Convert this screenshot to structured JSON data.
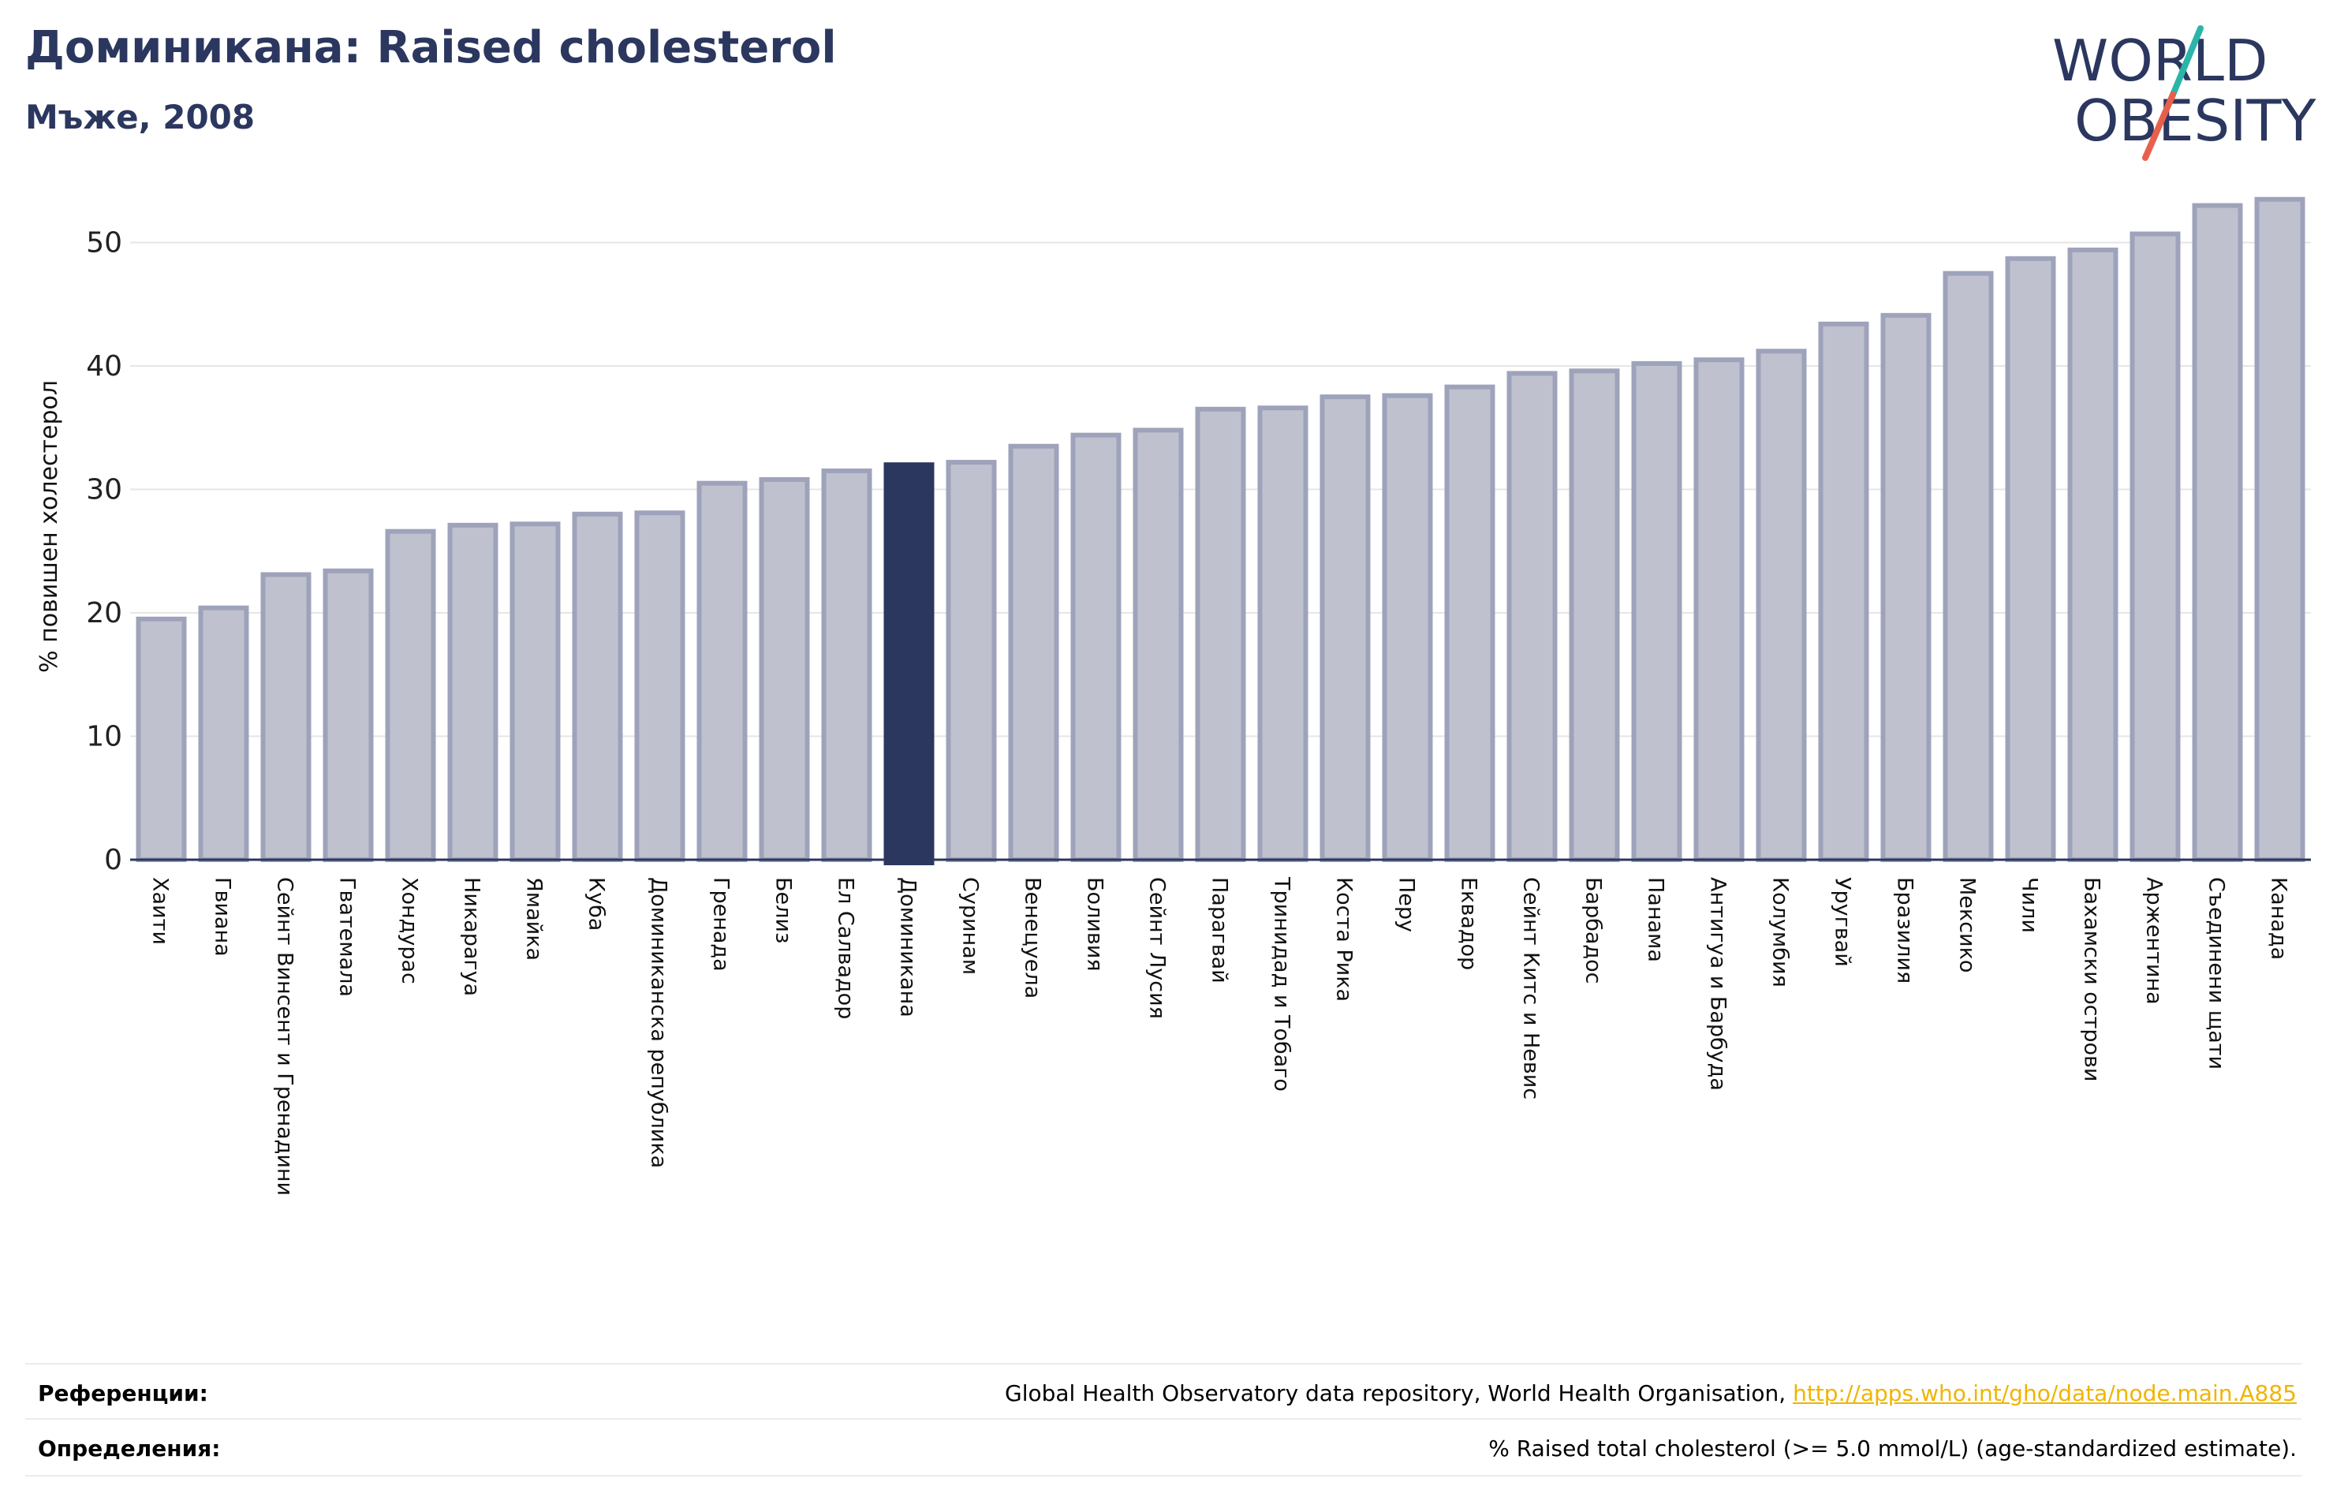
{
  "header": {
    "title": "Доминикана: Raised cholesterol",
    "subtitle": "Мъже, 2008"
  },
  "logo": {
    "line1": "WORLD",
    "line2": "OBESITY",
    "text_color": "#2b375f",
    "slash_teal": "#2bb5a8",
    "slash_red": "#e8604c"
  },
  "colors": {
    "bar_fill": "#bfc1ce",
    "bar_stroke": "#9ea3bb",
    "highlight": "#2b375f",
    "grid": "#e6e6e6",
    "axis": "#2b375f"
  },
  "chart_data": {
    "type": "bar",
    "ylabel": "% повишен холестерол",
    "ylim": [
      0,
      55
    ],
    "yticks": [
      0,
      10,
      20,
      30,
      40,
      50
    ],
    "highlight": "Доминикана",
    "grid": true,
    "categories": [
      "Хаити",
      "Гвиана",
      "Сейнт Винсент и Гренадини",
      "Гватемала",
      "Хондурас",
      "Никарагуа",
      "Ямайка",
      "Куба",
      "Доминиканска република",
      "Гренада",
      "Белиз",
      "Ел Салвадор",
      "Доминикана",
      "Суринам",
      "Венецуела",
      "Боливия",
      "Сейнт Лусия",
      "Парагвай",
      "Тринидад и Тобаго",
      "Коста Рика",
      "Перу",
      "Еквадор",
      "Сейнт Китс и Невис",
      "Барбадос",
      "Панама",
      "Антигуа и Барбуда",
      "Колумбия",
      "Уругвай",
      "Бразилия",
      "Мексико",
      "Чили",
      "Бахамски острови",
      "Аржентина",
      "Съединени щати",
      "Канада"
    ],
    "values": [
      19.5,
      20.4,
      23.1,
      23.4,
      26.6,
      27.1,
      27.2,
      28.0,
      28.1,
      30.5,
      30.8,
      31.5,
      32.0,
      32.2,
      33.5,
      34.4,
      34.8,
      36.5,
      36.6,
      37.5,
      37.6,
      38.3,
      39.4,
      39.6,
      40.2,
      40.5,
      41.2,
      43.4,
      44.1,
      47.5,
      48.7,
      49.4,
      50.7,
      53.0,
      53.5
    ]
  },
  "references": {
    "label": "Референции:",
    "text": "Global Health Observatory data repository, World Health Organisation, ",
    "link": "http://apps.who.int/gho/data/node.main.A885"
  },
  "definitions": {
    "label": "Определения:",
    "text": "% Raised total cholesterol (>= 5.0 mmol/L) (age-standardized estimate)."
  }
}
